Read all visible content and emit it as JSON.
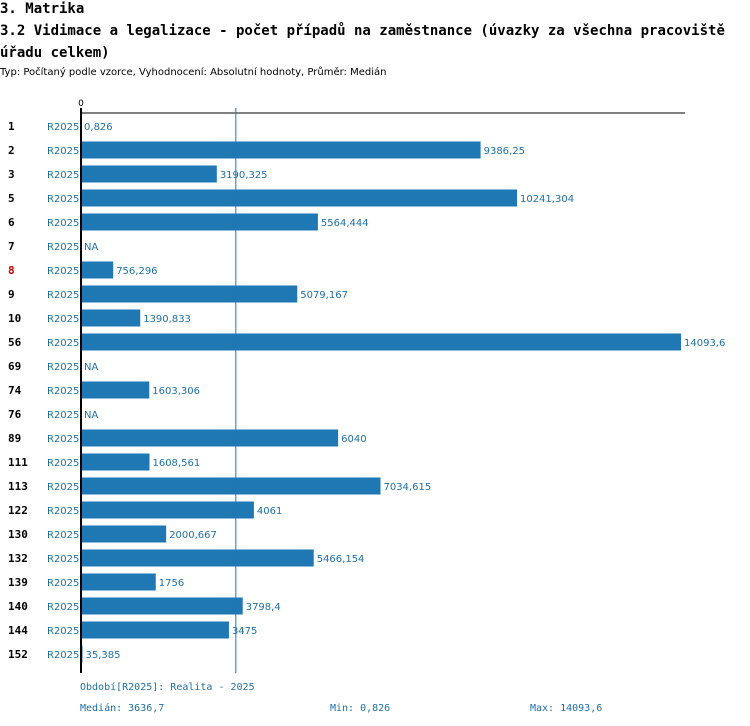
{
  "heading": "3. Matrika",
  "title": "3.2 Vidimace a legalizace - počet případů na zaměstnance (úvazky za všechna pracoviště úřadu celkem)",
  "subtitle": "Typ: Počítaný podle vzorce, Vyhodnocení: Absolutní hodnoty, Průměr: Medián",
  "colors": {
    "bar": "#1f77b4",
    "label": "#1f6fa8",
    "highlight": "#cc0000",
    "axis": "#000000"
  },
  "chart_data": {
    "type": "bar",
    "orientation": "horizontal",
    "axis_zero_label": "0",
    "xlim": [
      0,
      14093.6
    ],
    "median_line": 3636.7,
    "highlight_category": "8",
    "rows": [
      {
        "id": "1",
        "period": "R2025",
        "value": 0.826,
        "label": "0,826"
      },
      {
        "id": "2",
        "period": "R2025",
        "value": 9386.25,
        "label": "9386,25"
      },
      {
        "id": "3",
        "period": "R2025",
        "value": 3190.325,
        "label": "3190,325"
      },
      {
        "id": "5",
        "period": "R2025",
        "value": 10241.304,
        "label": "10241,304"
      },
      {
        "id": "6",
        "period": "R2025",
        "value": 5564.444,
        "label": "5564,444"
      },
      {
        "id": "7",
        "period": "R2025",
        "value": null,
        "label": "NA"
      },
      {
        "id": "8",
        "period": "R2025",
        "value": 756.296,
        "label": "756,296"
      },
      {
        "id": "9",
        "period": "R2025",
        "value": 5079.167,
        "label": "5079,167"
      },
      {
        "id": "10",
        "period": "R2025",
        "value": 1390.833,
        "label": "1390,833"
      },
      {
        "id": "56",
        "period": "R2025",
        "value": 14093.6,
        "label": "14093,6"
      },
      {
        "id": "69",
        "period": "R2025",
        "value": null,
        "label": "NA"
      },
      {
        "id": "74",
        "period": "R2025",
        "value": 1603.306,
        "label": "1603,306"
      },
      {
        "id": "76",
        "period": "R2025",
        "value": null,
        "label": "NA"
      },
      {
        "id": "89",
        "period": "R2025",
        "value": 6040,
        "label": "6040"
      },
      {
        "id": "111",
        "period": "R2025",
        "value": 1608.561,
        "label": "1608,561"
      },
      {
        "id": "113",
        "period": "R2025",
        "value": 7034.615,
        "label": "7034,615"
      },
      {
        "id": "122",
        "period": "R2025",
        "value": 4061,
        "label": "4061"
      },
      {
        "id": "130",
        "period": "R2025",
        "value": 2000.667,
        "label": "2000,667"
      },
      {
        "id": "132",
        "period": "R2025",
        "value": 5466.154,
        "label": "5466,154"
      },
      {
        "id": "139",
        "period": "R2025",
        "value": 1756,
        "label": "1756"
      },
      {
        "id": "140",
        "period": "R2025",
        "value": 3798.4,
        "label": "3798,4"
      },
      {
        "id": "144",
        "period": "R2025",
        "value": 3475,
        "label": "3475"
      },
      {
        "id": "152",
        "period": "R2025",
        "value": 35.385,
        "label": "35,385"
      }
    ]
  },
  "footer": {
    "period": "Období[R2025]: Realita - 2025",
    "median": "Medián: 3636,7",
    "min": "Min: 0,826",
    "max": "Max: 14093,6"
  }
}
